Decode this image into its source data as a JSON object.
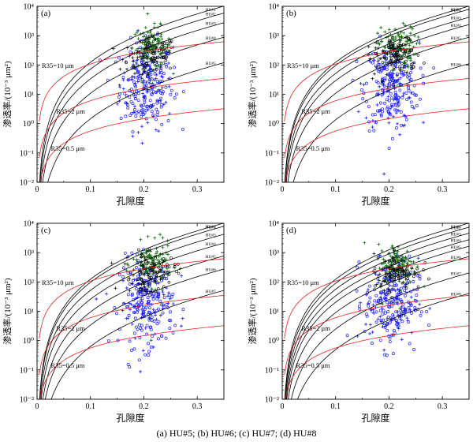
{
  "caption": "(a) HU#5; (b) HU#6; (c) HU#7; (d) HU#8",
  "colors": {
    "hu_curve": "#000000",
    "r35_curve": "#e02020",
    "blue_points": "#1a1aff",
    "green_points": "#0a6a0a",
    "black_points": "#000000"
  },
  "chart_data": [
    {
      "type": "scatter",
      "panel_label": "(a)",
      "xlabel": "孔隙度",
      "ylabel": "渗透率/(10⁻³ μm²)",
      "xlim": [
        0,
        0.35
      ],
      "ylim": [
        0.01,
        10000
      ],
      "yscale": "log",
      "xticks": [
        "0",
        "0.1",
        "0.2",
        "0.3"
      ],
      "yticks": [
        "10⁻²",
        "10⁻¹",
        "10⁰",
        "10¹",
        "10²",
        "10³",
        "10⁴"
      ],
      "hu_curves": [
        {
          "name": "HU#1",
          "k_at_0_3": 5500
        },
        {
          "name": "HU#2",
          "k_at_0_3": 3200
        },
        {
          "name": "HU#3",
          "k_at_0_3": 1500
        },
        {
          "name": "HU#4",
          "k_at_0_3": 480
        },
        {
          "name": "HU#5",
          "k_at_0_3": 65
        }
      ],
      "r35_curves": [
        {
          "label": "R35=10 μm",
          "k_at_0_3": 500
        },
        {
          "label": "R35=2 μm",
          "k_at_0_3": 28
        },
        {
          "label": "R35=0.5 μm",
          "k_at_0_3": 2.6
        }
      ],
      "annotations": [
        "R35=10 μm",
        "R35=2 μm",
        "R35=0.5 μm"
      ],
      "point_groups": [
        "green crosses (HU#1–HU#2)",
        "black crosses (HU#3–HU#4)",
        "black open circles (HU#4)",
        "blue open circles (HU#5)",
        "blue crosses (HU#5)"
      ]
    },
    {
      "type": "scatter",
      "panel_label": "(b)",
      "xlabel": "孔隙度",
      "ylabel": "渗透率/(10⁻³ μm²)",
      "xlim": [
        0,
        0.35
      ],
      "ylim": [
        0.01,
        10000
      ],
      "yscale": "log",
      "xticks": [
        "0",
        "0.1",
        "0.2",
        "0.3"
      ],
      "yticks": [
        "10⁻²",
        "10⁻¹",
        "10⁰",
        "10¹",
        "10²",
        "10³",
        "10⁴"
      ],
      "hu_curves": [
        {
          "name": "HU#1",
          "k_at_0_3": 5500
        },
        {
          "name": "HU#2",
          "k_at_0_3": 4300
        },
        {
          "name": "HU#3",
          "k_at_0_3": 2300
        },
        {
          "name": "HU#4",
          "k_at_0_3": 1300
        },
        {
          "name": "HU#5",
          "k_at_0_3": 480
        },
        {
          "name": "HU#6",
          "k_at_0_3": 60
        }
      ],
      "r35_curves": [
        {
          "label": "R35=10 μm",
          "k_at_0_3": 500
        },
        {
          "label": "R35=2 μm",
          "k_at_0_3": 28
        },
        {
          "label": "R35=0.5 μm",
          "k_at_0_3": 2.6
        }
      ],
      "annotations": [
        "R35=10 μm",
        "R35=2 μm",
        "R35=0.5 μm"
      ]
    },
    {
      "type": "scatter",
      "panel_label": "(c)",
      "xlabel": "孔隙度",
      "ylabel": "渗透率/(10⁻³ μm²)",
      "xlim": [
        0,
        0.35
      ],
      "ylim": [
        0.01,
        10000
      ],
      "yscale": "log",
      "xticks": [
        "0",
        "0.1",
        "0.2",
        "0.3"
      ],
      "yticks": [
        "10⁻²",
        "10⁻¹",
        "10⁰",
        "10¹",
        "10²",
        "10³",
        "10⁴"
      ],
      "hu_curves": [
        {
          "name": "HU#1",
          "k_at_0_3": 5500
        },
        {
          "name": "HU#2",
          "k_at_0_3": 4300
        },
        {
          "name": "HU#3",
          "k_at_0_3": 2300
        },
        {
          "name": "HU#4",
          "k_at_0_3": 1150
        },
        {
          "name": "HU#5",
          "k_at_0_3": 420
        },
        {
          "name": "HU#6",
          "k_at_0_3": 150
        },
        {
          "name": "HU#7",
          "k_at_0_3": 28
        }
      ],
      "r35_curves": [
        {
          "label": "R35=10 μm",
          "k_at_0_3": 500
        },
        {
          "label": "R35=2 μm",
          "k_at_0_3": 28
        },
        {
          "label": "R35=0.5 μm",
          "k_at_0_3": 2.6
        }
      ],
      "annotations": [
        "R35=10 μm",
        "R35=2 μm",
        "R35=0.5 μm"
      ]
    },
    {
      "type": "scatter",
      "panel_label": "(d)",
      "xlabel": "孔隙度",
      "ylabel": "渗透率/(10⁻³ μm²)",
      "xlim": [
        0,
        0.35
      ],
      "ylim": [
        0.01,
        10000
      ],
      "yscale": "log",
      "xticks": [
        "0",
        "0.1",
        "0.2",
        "0.3"
      ],
      "yticks": [
        "10⁻²",
        "10⁻¹",
        "10⁰",
        "10¹",
        "10²",
        "10³",
        "10⁴"
      ],
      "hu_curves": [
        {
          "name": "HU#1",
          "k_at_0_3": 5500
        },
        {
          "name": "HU#2",
          "k_at_0_3": 4000
        },
        {
          "name": "HU#3",
          "k_at_0_3": 2500
        },
        {
          "name": "HU#4",
          "k_at_0_3": 1500
        },
        {
          "name": "HU#5",
          "k_at_0_3": 900
        },
        {
          "name": "HU#6",
          "k_at_0_3": 400
        },
        {
          "name": "HU#7",
          "k_at_0_3": 110
        },
        {
          "name": "HU#8",
          "k_at_0_3": 22
        }
      ],
      "r35_curves": [
        {
          "label": "R35=10 μm",
          "k_at_0_3": 500
        },
        {
          "label": "R35=2 μm",
          "k_at_0_3": 28
        },
        {
          "label": "R35=0.5 μm",
          "k_at_0_3": 2.6
        }
      ],
      "annotations": [
        "R35=10 μm",
        "R35=2 μm",
        "R35=0.5 μm"
      ]
    }
  ]
}
